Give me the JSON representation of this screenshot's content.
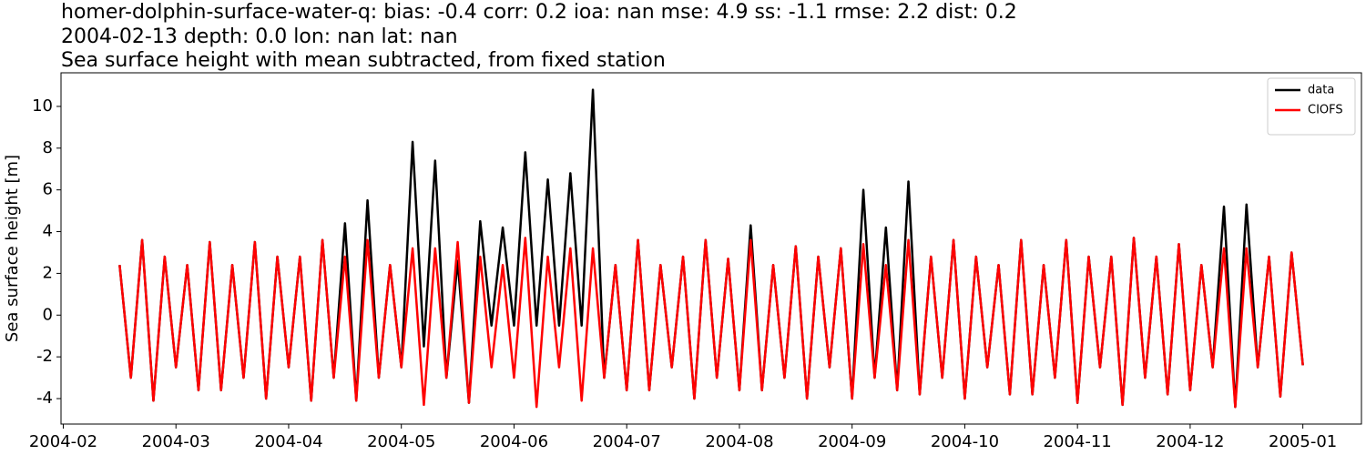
{
  "chart_data": {
    "type": "line",
    "title": "homer-dolphin-surface-water-q: bias: -0.4  corr: 0.2  ioa: nan  mse: 4.9  ss: -1.1  rmse: 2.2  dist: 0.2",
    "subtitle": "2004-02-13 depth: 0.0 lon: nan lat: nan",
    "description": "Sea surface height with mean subtracted, from fixed station",
    "y_label": "Sea surface height [m]",
    "x": [
      2.5,
      2.6,
      2.7,
      2.8,
      2.9,
      3.0,
      3.1,
      3.2,
      3.3,
      3.4,
      3.5,
      3.6,
      3.7,
      3.8,
      3.9,
      4.0,
      4.1,
      4.2,
      4.3,
      4.4,
      4.5,
      4.6,
      4.7,
      4.8,
      4.9,
      5.0,
      5.1,
      5.2,
      5.3,
      5.4,
      5.5,
      5.6,
      5.7,
      5.8,
      5.9,
      6.0,
      6.1,
      6.2,
      6.3,
      6.4,
      6.5,
      6.6,
      6.7,
      6.8,
      6.9,
      7.0,
      7.1,
      7.2,
      7.3,
      7.4,
      7.5,
      7.6,
      7.7,
      7.8,
      7.9,
      8.0,
      8.1,
      8.2,
      8.3,
      8.4,
      8.5,
      8.6,
      8.7,
      8.8,
      8.9,
      9.0,
      9.1,
      9.2,
      9.3,
      9.4,
      9.5,
      9.6,
      9.7,
      9.8,
      9.9,
      10.0,
      10.1,
      10.2,
      10.3,
      10.4,
      10.5,
      10.6,
      10.7,
      10.8,
      10.9,
      11.0,
      11.1,
      11.2,
      11.3,
      11.4,
      11.5,
      11.6,
      11.7,
      11.8,
      11.9,
      12.0,
      12.1,
      12.2,
      12.3,
      12.4,
      12.5,
      12.6,
      12.7,
      12.8,
      12.9,
      13.0
    ],
    "series": [
      {
        "name": "data",
        "color": "#000000",
        "values": [
          2.4,
          -3.0,
          3.6,
          -4.1,
          2.8,
          -2.5,
          2.4,
          -3.6,
          3.5,
          -3.6,
          2.4,
          -3.0,
          3.5,
          -4.0,
          2.8,
          -2.5,
          2.8,
          -4.1,
          3.6,
          -3.0,
          4.4,
          -4.1,
          5.5,
          -3.0,
          2.4,
          -2.5,
          8.3,
          -1.5,
          7.4,
          -3.0,
          2.6,
          -4.2,
          4.5,
          -0.5,
          4.2,
          -0.5,
          7.8,
          -0.5,
          6.5,
          -0.5,
          6.8,
          -0.5,
          10.8,
          -3.0,
          2.4,
          -3.6,
          3.6,
          -3.6,
          2.4,
          -2.5,
          2.8,
          -4.0,
          3.6,
          -3.0,
          2.7,
          -3.6,
          4.3,
          -3.6,
          2.4,
          -3.0,
          3.3,
          -4.0,
          2.8,
          -2.5,
          3.2,
          -4.0,
          6.0,
          -3.0,
          4.2,
          -3.6,
          6.4,
          -3.8,
          2.8,
          -3.0,
          3.6,
          -4.0,
          2.8,
          -2.5,
          2.4,
          -3.8,
          3.6,
          -3.8,
          2.4,
          -3.0,
          3.6,
          -4.2,
          2.8,
          -2.5,
          2.8,
          -4.3,
          3.7,
          -3.0,
          2.8,
          -3.8,
          3.4,
          -3.6,
          2.4,
          -2.5,
          5.2,
          -4.4,
          5.3,
          -2.5,
          2.8,
          -3.9,
          3.0,
          -2.4
        ]
      },
      {
        "name": "CIOFS",
        "color": "#ff0000",
        "values": [
          2.4,
          -3.0,
          3.6,
          -4.1,
          2.8,
          -2.5,
          2.4,
          -3.6,
          3.5,
          -3.6,
          2.4,
          -3.0,
          3.5,
          -4.0,
          2.8,
          -2.5,
          2.8,
          -4.1,
          3.6,
          -3.0,
          2.8,
          -4.1,
          3.6,
          -3.0,
          2.4,
          -2.5,
          3.2,
          -4.3,
          3.2,
          -3.0,
          3.5,
          -4.2,
          2.8,
          -2.5,
          2.4,
          -3.0,
          3.7,
          -4.4,
          2.8,
          -2.5,
          3.2,
          -4.1,
          3.2,
          -3.0,
          2.4,
          -3.6,
          3.6,
          -3.6,
          2.4,
          -2.5,
          2.8,
          -4.0,
          3.6,
          -3.0,
          2.7,
          -3.6,
          3.6,
          -3.6,
          2.4,
          -3.0,
          3.3,
          -4.0,
          2.8,
          -2.5,
          3.2,
          -4.0,
          3.4,
          -3.0,
          2.4,
          -3.6,
          3.6,
          -3.8,
          2.8,
          -3.0,
          3.6,
          -4.0,
          2.8,
          -2.5,
          2.4,
          -3.8,
          3.6,
          -3.8,
          2.4,
          -3.0,
          3.6,
          -4.2,
          2.8,
          -2.5,
          2.8,
          -4.3,
          3.7,
          -3.0,
          2.8,
          -3.8,
          3.4,
          -3.6,
          2.4,
          -2.5,
          3.2,
          -4.4,
          3.2,
          -2.5,
          2.8,
          -3.9,
          3.0,
          -2.4
        ]
      }
    ],
    "xlim": [
      1.98,
      13.52
    ],
    "xticks": [
      {
        "value": 2,
        "label": "2004-02"
      },
      {
        "value": 3,
        "label": "2004-03"
      },
      {
        "value": 4,
        "label": "2004-04"
      },
      {
        "value": 5,
        "label": "2004-05"
      },
      {
        "value": 6,
        "label": "2004-06"
      },
      {
        "value": 7,
        "label": "2004-07"
      },
      {
        "value": 8,
        "label": "2004-08"
      },
      {
        "value": 9,
        "label": "2004-09"
      },
      {
        "value": 10,
        "label": "2004-10"
      },
      {
        "value": 11,
        "label": "2004-11"
      },
      {
        "value": 12,
        "label": "2004-12"
      },
      {
        "value": 13,
        "label": "2005-01"
      }
    ],
    "ylim": [
      -5.22,
      11.61
    ],
    "yticks": [
      -4,
      -2,
      0,
      2,
      4,
      6,
      8,
      10
    ],
    "grid": false,
    "legend": "upper-right"
  }
}
